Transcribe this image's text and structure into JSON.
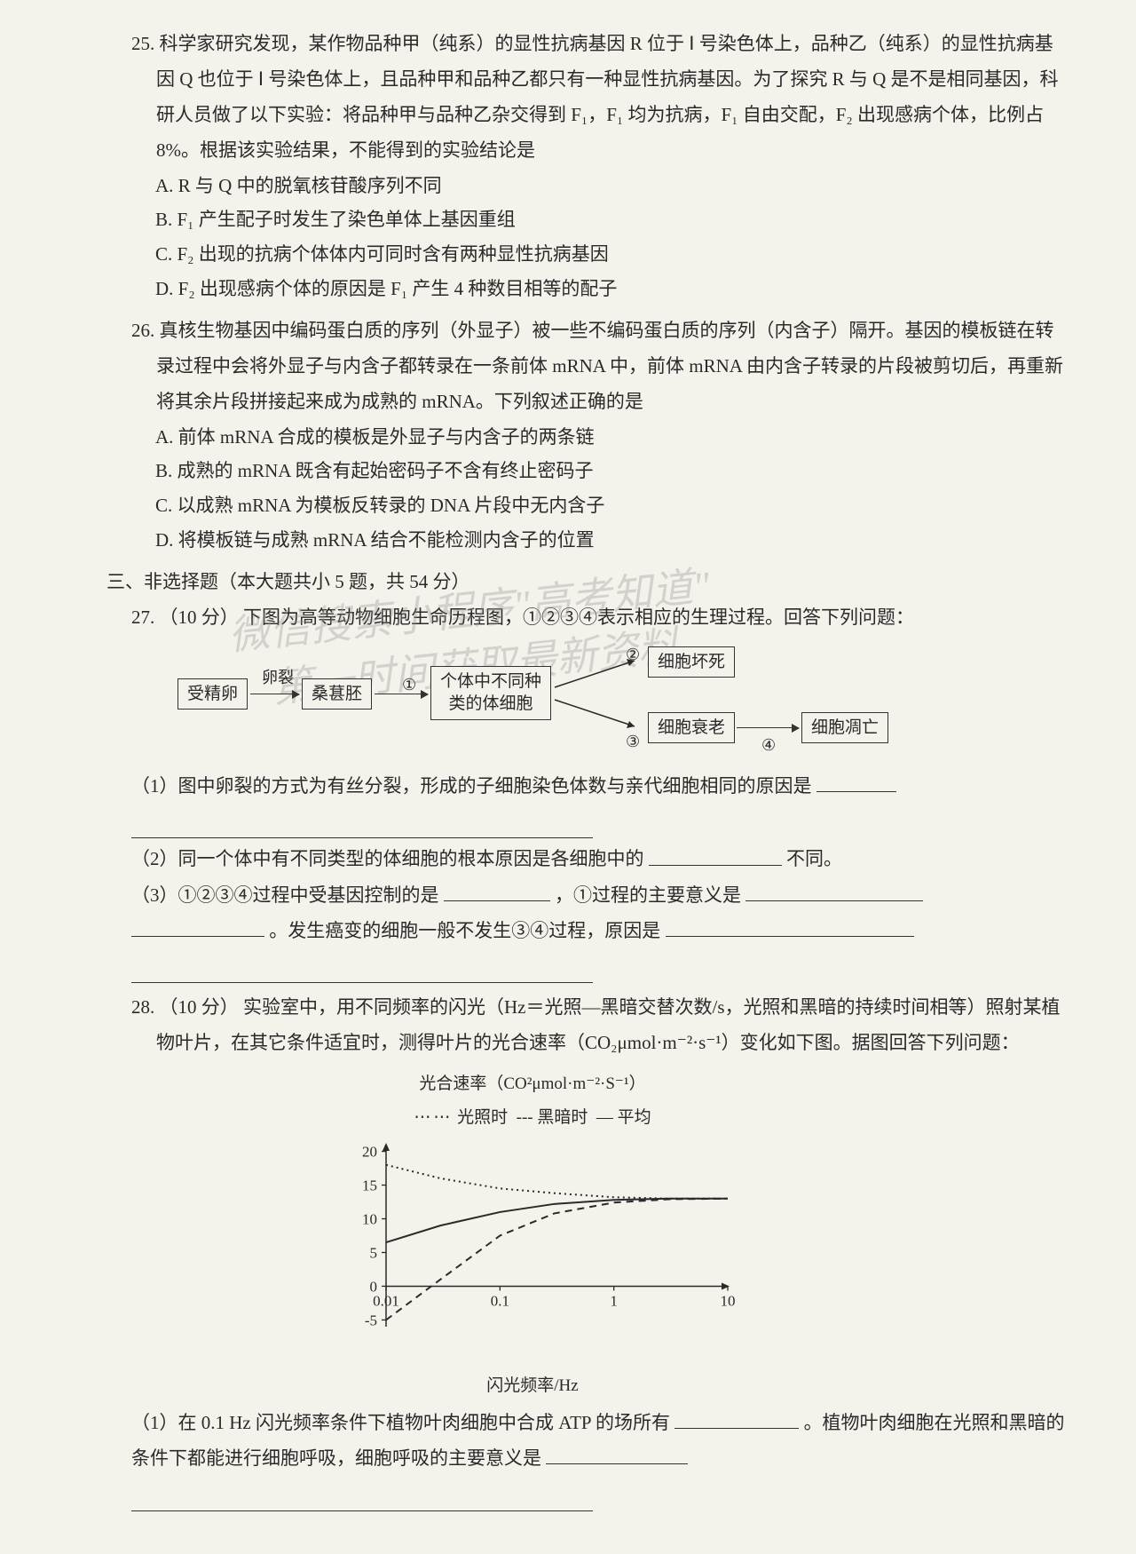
{
  "q25": {
    "num": "25.",
    "text": "科学家研究发现，某作物品种甲（纯系）的显性抗病基因 R 位于 Ⅰ 号染色体上，品种乙（纯系）的显性抗病基因 Q 也位于 Ⅰ 号染色体上，且品种甲和品种乙都只有一种显性抗病基因。为了探究 R 与 Q 是不是相同基因，科研人员做了以下实验：将品种甲与品种乙杂交得到 F₁，F₁ 均为抗病，F₁ 自由交配，F₂ 出现感病个体，比例占 8%。根据该实验结果，不能得到的实验结论是",
    "A": "A. R 与 Q 中的脱氧核苷酸序列不同",
    "B": "B. F₁ 产生配子时发生了染色单体上基因重组",
    "C": "C. F₂ 出现的抗病个体体内可同时含有两种显性抗病基因",
    "D": "D. F₂ 出现感病个体的原因是 F₁ 产生 4 种数目相等的配子"
  },
  "q26": {
    "num": "26.",
    "text": "真核生物基因中编码蛋白质的序列（外显子）被一些不编码蛋白质的序列（内含子）隔开。基因的模板链在转录过程中会将外显子与内含子都转录在一条前体 mRNA 中，前体 mRNA 由内含子转录的片段被剪切后，再重新将其余片段拼接起来成为成熟的 mRNA。下列叙述正确的是",
    "A": "A. 前体 mRNA 合成的模板是外显子与内含子的两条链",
    "B": "B. 成熟的 mRNA 既含有起始密码子不含有终止密码子",
    "C": "C. 以成熟 mRNA 为模板反转录的 DNA 片段中无内含子",
    "D": "D. 将模板链与成熟 mRNA 结合不能检测内含子的位置"
  },
  "section3": "三、非选择题（本大题共小 5 题，共 54 分）",
  "q27": {
    "num": "27.",
    "points": "（10 分）",
    "text": "下图为高等动物细胞生命历程图，①②③④表示相应的生理过程。回答下列问题：",
    "flow": {
      "n1": "受精卵",
      "e1": "卵裂",
      "n2": "桑葚胚",
      "e2": "①",
      "n3_l1": "个体中不同种",
      "n3_l2": "类的体细胞",
      "e3": "②",
      "n4": "细胞坏死",
      "n5": "细胞衰老",
      "e4": "③",
      "e5": "④",
      "n6": "细胞凋亡"
    },
    "p1": "（1）图中卵裂的方式为有丝分裂，形成的子细胞染色体数与亲代细胞相同的原因是",
    "p2a": "（2）同一个体中有不同类型的体细胞的根本原因是各细胞中的",
    "p2b": "不同。",
    "p3a": "（3）①②③④过程中受基因控制的是",
    "p3b": "，①过程的主要意义是",
    "p3c": "。发生癌变的细胞一般不发生③④过程，原因是"
  },
  "q28": {
    "num": "28.",
    "points": "（10 分）",
    "text": "实验室中，用不同频率的闪光（Hz＝光照—黑暗交替次数/s，光照和黑暗的持续时间相等）照射某植物叶片，在其它条件适宜时，测得叶片的光合速率（CO₂μmol·m⁻²·s⁻¹）变化如下图。据图回答下列问题：",
    "chart": {
      "title": "光合速率（CO²μmol·m⁻²·S⁻¹）",
      "legend_light": "光照时",
      "legend_dark": "黑暗时",
      "legend_avg": "平均",
      "xlabel": "闪光频率/Hz",
      "yticks": [
        -5,
        0,
        5,
        10,
        15,
        20
      ],
      "xticks": [
        "0.01",
        "0.1",
        "1",
        "10"
      ],
      "xscale": "log",
      "ylim": [
        -6,
        21
      ],
      "colors": {
        "axis": "#2a2a2a",
        "line": "#2a2a2a"
      },
      "series": {
        "light": {
          "style": "dotted",
          "points": [
            [
              0.01,
              18
            ],
            [
              0.03,
              16
            ],
            [
              0.1,
              14.5
            ],
            [
              0.3,
              13.8
            ],
            [
              1,
              13.2
            ],
            [
              3,
              13
            ],
            [
              10,
              13
            ]
          ]
        },
        "average": {
          "style": "solid",
          "points": [
            [
              0.01,
              6.5
            ],
            [
              0.03,
              9
            ],
            [
              0.1,
              11
            ],
            [
              0.3,
              12.2
            ],
            [
              1,
              12.8
            ],
            [
              3,
              13
            ],
            [
              10,
              13
            ]
          ]
        },
        "dark": {
          "style": "dashed",
          "points": [
            [
              0.01,
              -5
            ],
            [
              0.03,
              1
            ],
            [
              0.1,
              7.5
            ],
            [
              0.3,
              10.8
            ],
            [
              1,
              12.4
            ],
            [
              3,
              12.9
            ],
            [
              10,
              13
            ]
          ]
        }
      }
    },
    "p1a": "（1）在 0.1 Hz 闪光频率条件下植物叶肉细胞中合成 ATP 的场所有",
    "p1b": "。植物叶肉细胞在光照和黑暗的条件下都能进行细胞呼吸，细胞呼吸的主要意义是"
  },
  "watermark": {
    "l1": "微信搜索小程序\"高考知道\"",
    "l2": "第一时间获取最新资料"
  }
}
